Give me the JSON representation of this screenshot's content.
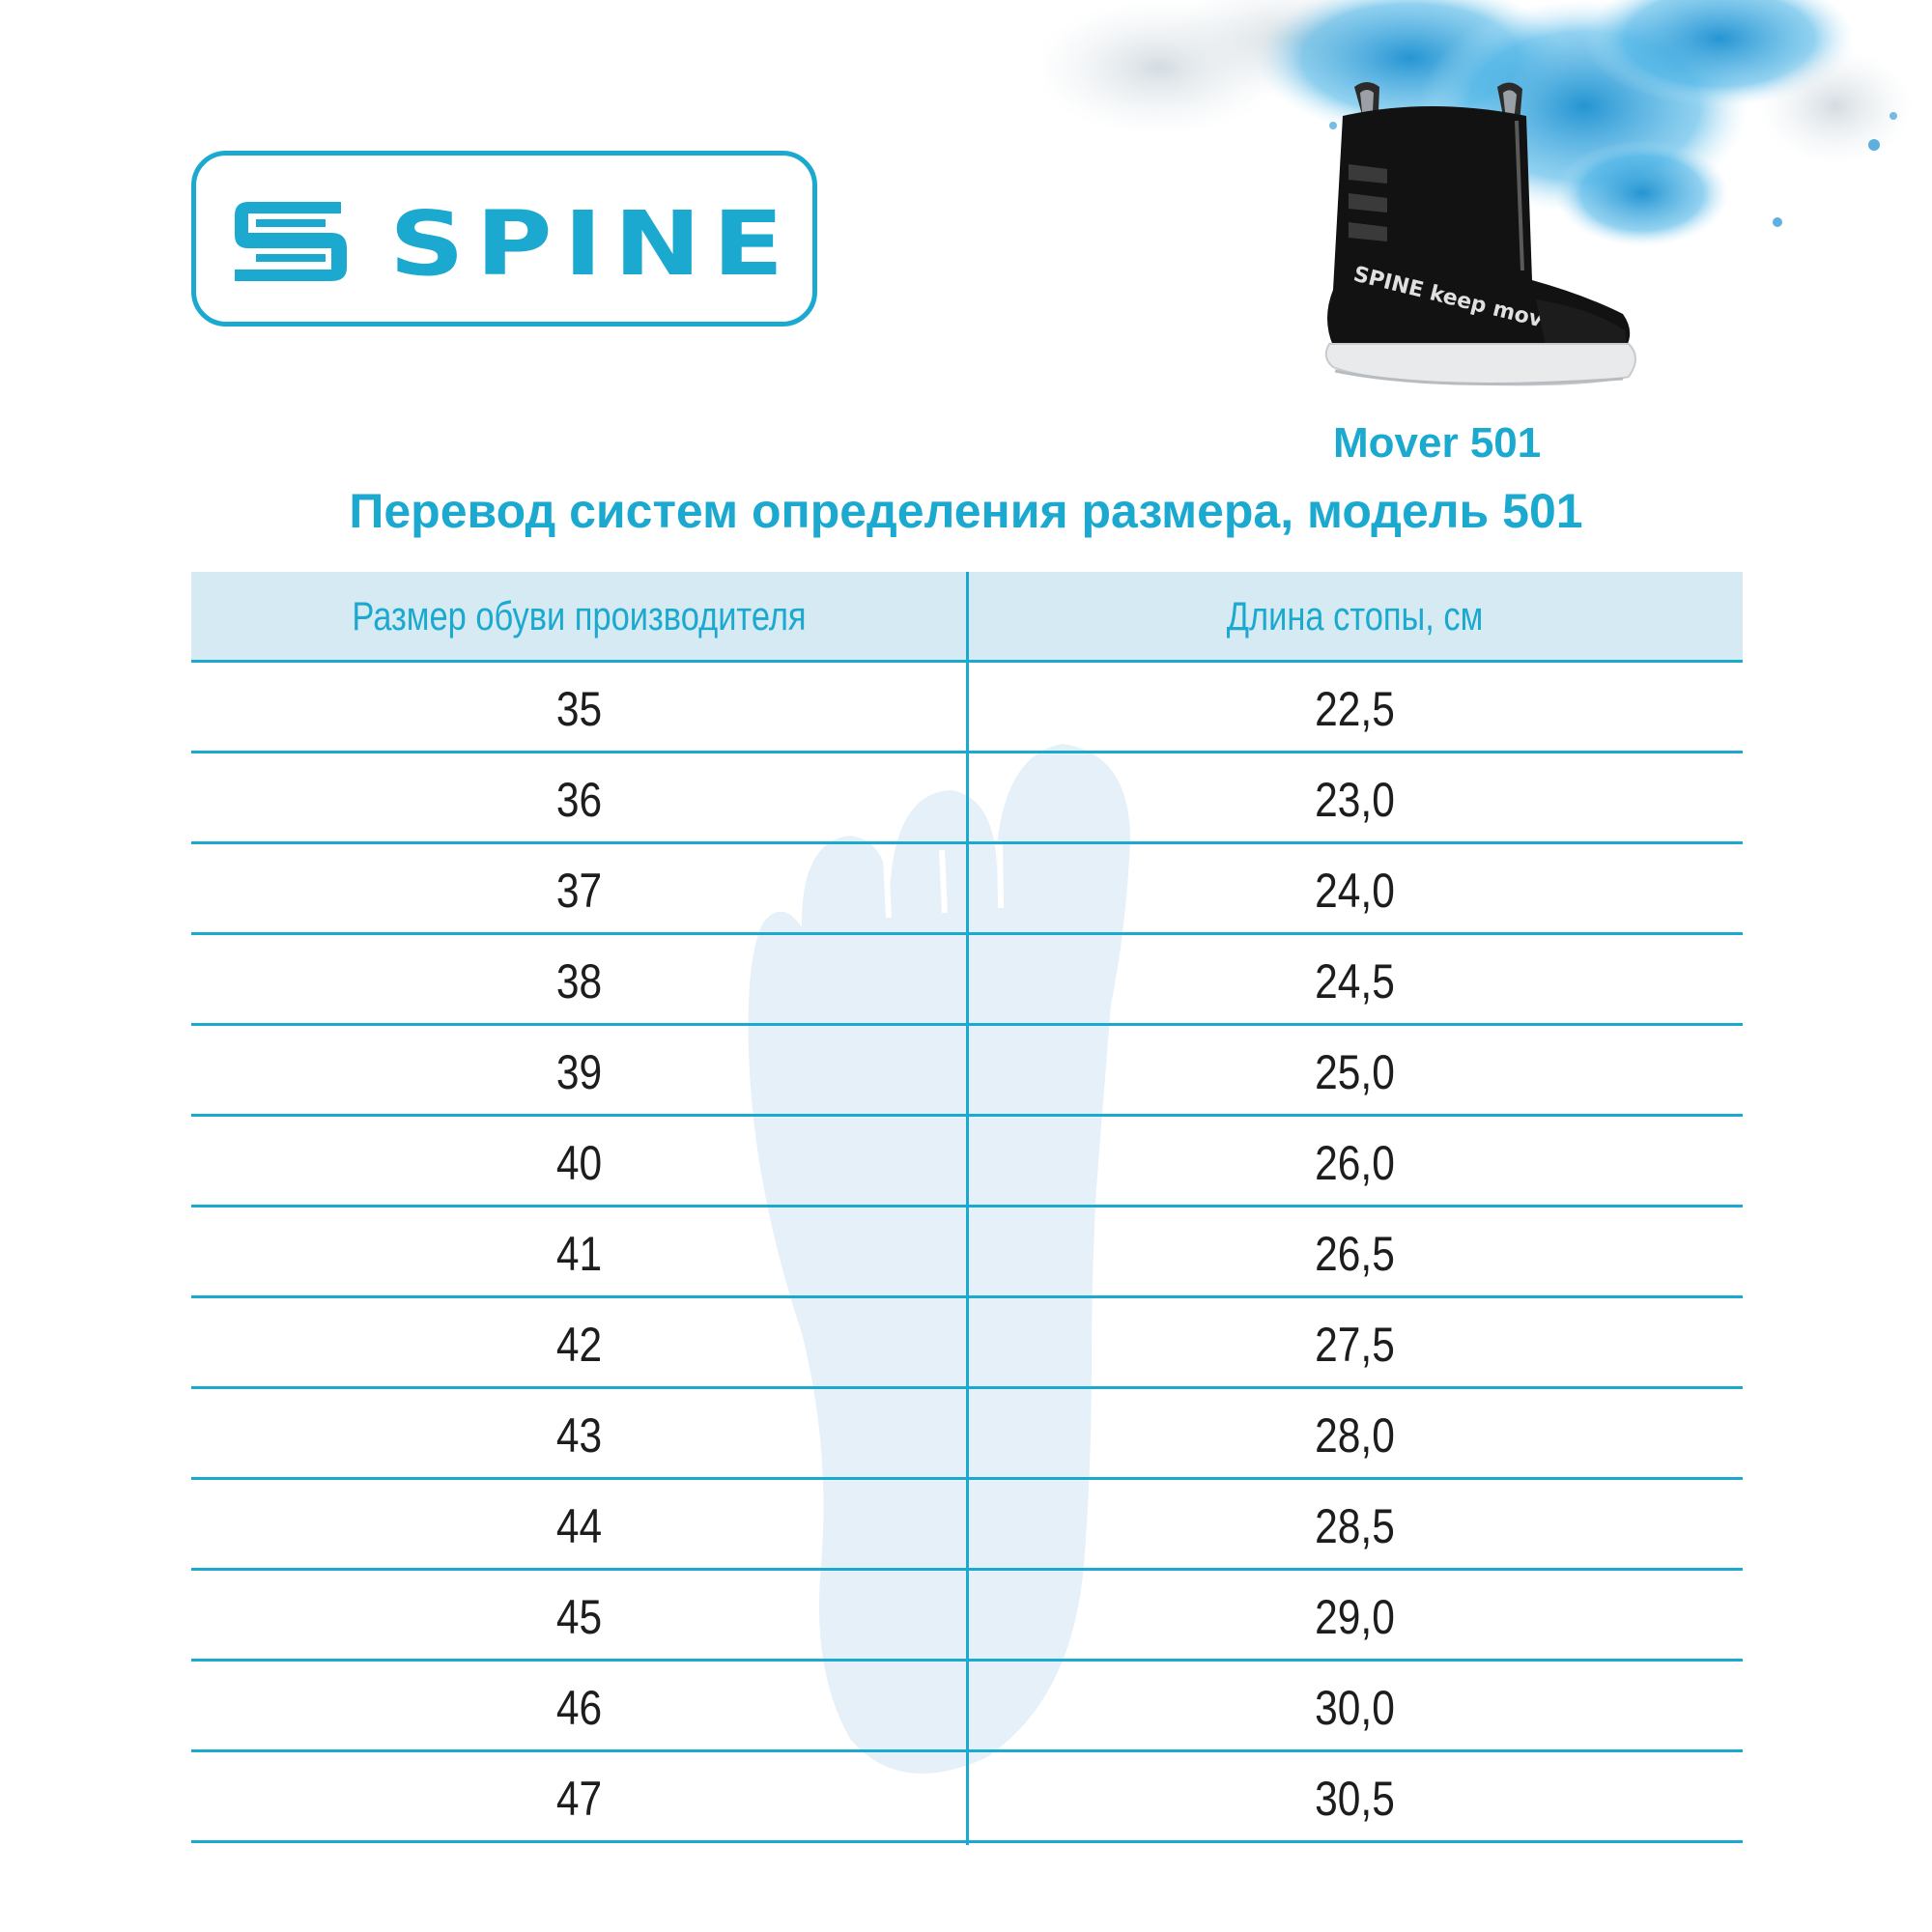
{
  "brand": {
    "logo_text": "SPINE",
    "accent_color": "#1ba9cf"
  },
  "product": {
    "model_name": "Mover 501",
    "boot_print": "SPINE keep moving"
  },
  "page": {
    "title": "Перевод систем определения размера, модель 501"
  },
  "table": {
    "headers": [
      "Размер обуви производителя",
      "Длина стопы, см"
    ],
    "rows": [
      {
        "size": "35",
        "length": "22,5"
      },
      {
        "size": "36",
        "length": "23,0"
      },
      {
        "size": "37",
        "length": "24,0"
      },
      {
        "size": "38",
        "length": "24,5"
      },
      {
        "size": "39",
        "length": "25,0"
      },
      {
        "size": "40",
        "length": "26,0"
      },
      {
        "size": "41",
        "length": "26,5"
      },
      {
        "size": "42",
        "length": "27,5"
      },
      {
        "size": "43",
        "length": "28,0"
      },
      {
        "size": "44",
        "length": "28,5"
      },
      {
        "size": "45",
        "length": "29,0"
      },
      {
        "size": "46",
        "length": "30,0"
      },
      {
        "size": "47",
        "length": "30,5"
      }
    ]
  },
  "decor": {
    "splash": "blue-powder-splash",
    "foot": "foot-outline-icon",
    "boot": "boot-product-image"
  }
}
